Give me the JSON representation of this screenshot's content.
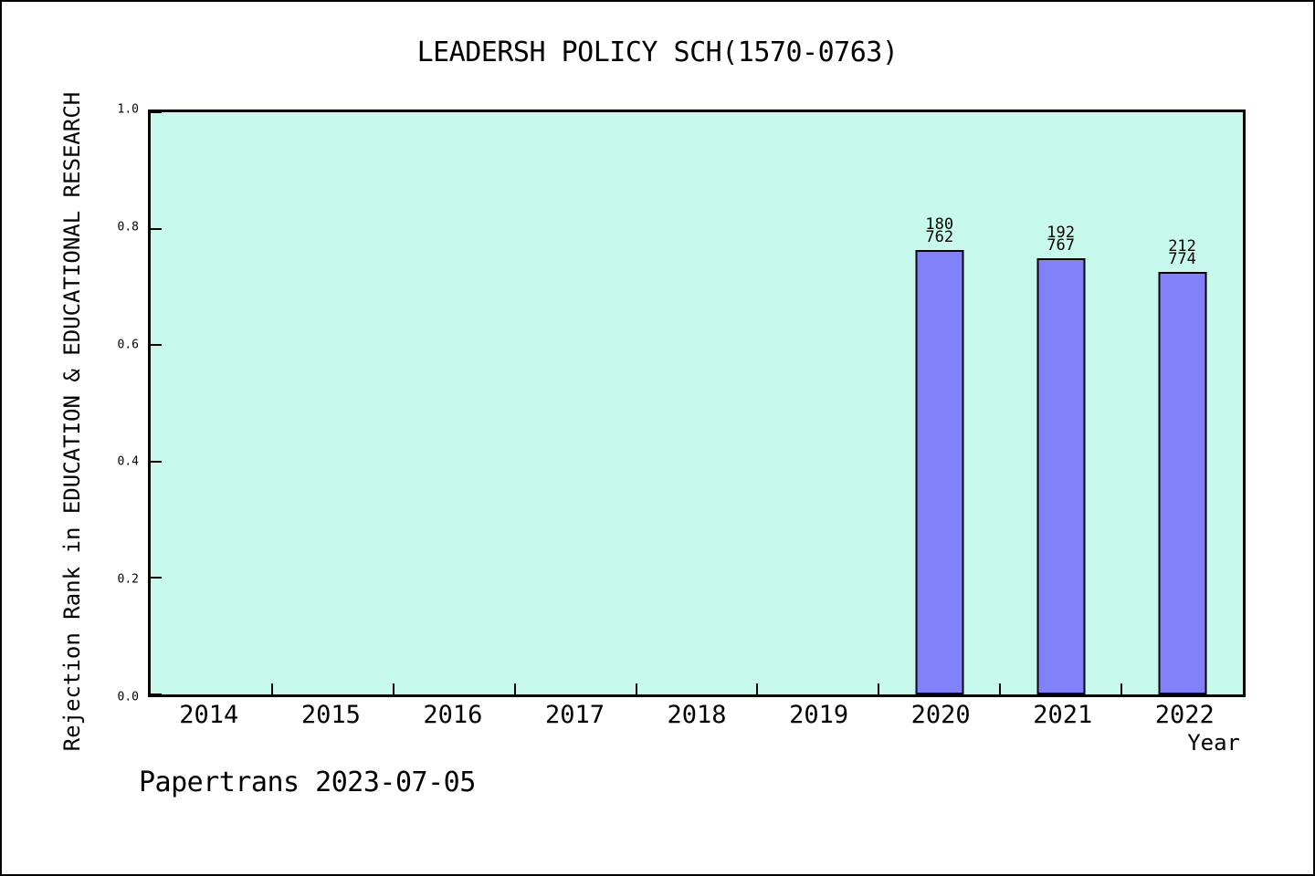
{
  "chart_data": {
    "type": "bar",
    "title": "LEADERSH POLICY SCH(1570-0763)",
    "xlabel": "Year",
    "ylabel": "Rejection Rank in EDUCATION & EDUCATIONAL RESEARCH",
    "categories": [
      "2014",
      "2015",
      "2016",
      "2017",
      "2018",
      "2019",
      "2020",
      "2021",
      "2022"
    ],
    "values": [
      null,
      null,
      null,
      null,
      null,
      null,
      0.764,
      0.75,
      0.726
    ],
    "bar_labels": [
      null,
      null,
      null,
      null,
      null,
      null,
      [
        "180",
        "762"
      ],
      [
        "192",
        "767"
      ],
      [
        "212",
        "774"
      ]
    ],
    "yticks": [
      0.0,
      0.2,
      0.4,
      0.6,
      0.8,
      1.0
    ],
    "ylim": [
      0,
      1
    ],
    "grid": false,
    "legend_position": "none",
    "colors": {
      "plot_background": "#c7faec",
      "bar_fill": "#8181fa",
      "bar_edge": "#000000",
      "axis": "#000000",
      "text": "#000000"
    }
  },
  "footer": {
    "text": "Papertrans 2023-07-05"
  }
}
